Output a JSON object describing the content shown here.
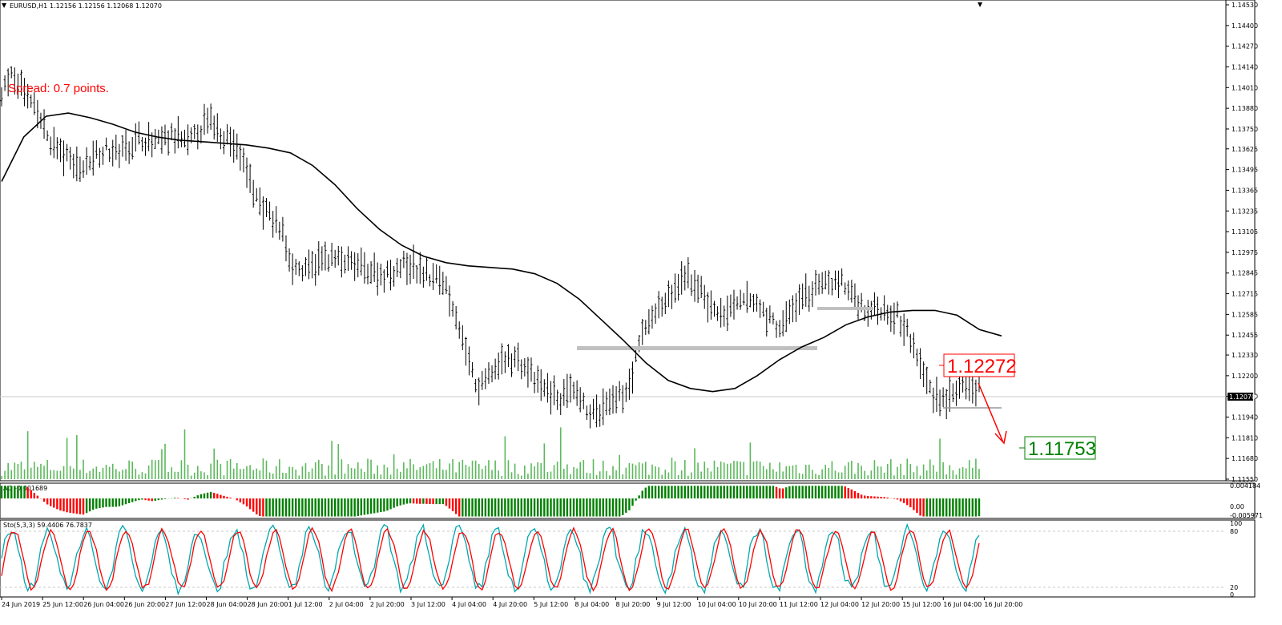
{
  "header": {
    "symbol_label": "EURUSD,H1",
    "ohlc_label": "1.12156 1.12156 1.12068 1.12070"
  },
  "spread_label": "Spread: 0.7 points.",
  "current_price_label": "1.12070",
  "annotations": {
    "resistance_label": "1.12272",
    "target_label": "1.11753"
  },
  "ao_panel": {
    "label": "AO -0.001689",
    "axis_labels": [
      "0.004184",
      "0.00",
      "-0.005971"
    ]
  },
  "sto_panel": {
    "label": "Sto(5,3,3) 59.4406 76.7837",
    "axis_labels": [
      "100",
      "80",
      "20",
      "0"
    ]
  },
  "colors": {
    "bars": "#000000",
    "ma": "#000000",
    "volume": "#5cb85c",
    "ao_up": "#008000",
    "ao_down": "#ff0000",
    "sto_main": "#00a8b0",
    "sto_signal": "#ff0000",
    "support_zone": "#c0c0c0",
    "arrow": "#ff0000"
  },
  "chart_data": {
    "type": "line",
    "title": "EURUSD,H1",
    "price_axis_ticks": [
      "1.14530",
      "1.14400",
      "1.14270",
      "1.14140",
      "1.14010",
      "1.13880",
      "1.13750",
      "1.13625",
      "1.13495",
      "1.13365",
      "1.13235",
      "1.13105",
      "1.12975",
      "1.12845",
      "1.12715",
      "1.12585",
      "1.12455",
      "1.12330",
      "1.12200",
      "1.12070",
      "1.11940",
      "1.11810",
      "1.11680",
      "1.11550"
    ],
    "time_axis_ticks": [
      "24 Jun 2019",
      "25 Jun 12:00",
      "26 Jun 04:00",
      "26 Jun 20:00",
      "27 Jun 12:00",
      "28 Jun 04:00",
      "28 Jun 20:00",
      "1 Jul 12:00",
      "2 Jul 04:00",
      "2 Jul 20:00",
      "3 Jul 12:00",
      "4 Jul 04:00",
      "4 Jul 20:00",
      "5 Jul 12:00",
      "8 Jul 04:00",
      "8 Jul 20:00",
      "9 Jul 12:00",
      "10 Jul 04:00",
      "10 Jul 20:00",
      "11 Jul 12:00",
      "12 Jul 04:00",
      "12 Jul 20:00",
      "15 Jul 12:00",
      "16 Jul 04:00",
      "16 Jul 20:00"
    ],
    "ylim": [
      1.1155,
      1.1453
    ],
    "price_path": [
      1.14,
      1.1408,
      1.1398,
      1.1385,
      1.137,
      1.136,
      1.1355,
      1.135,
      1.136,
      1.1362,
      1.136,
      1.1365,
      1.137,
      1.1365,
      1.1368,
      1.137,
      1.1365,
      1.1375,
      1.138,
      1.1372,
      1.1365,
      1.135,
      1.133,
      1.132,
      1.1312,
      1.129,
      1.1285,
      1.129,
      1.1295,
      1.1292,
      1.129,
      1.1288,
      1.1285,
      1.1283,
      1.1288,
      1.129,
      1.1285,
      1.1282,
      1.128,
      1.126,
      1.123,
      1.121,
      1.1222,
      1.1228,
      1.1232,
      1.1225,
      1.1215,
      1.121,
      1.1205,
      1.121,
      1.12,
      1.1195,
      1.12,
      1.1205,
      1.1215,
      1.1245,
      1.126,
      1.1265,
      1.1275,
      1.1282,
      1.1275,
      1.1262,
      1.1258,
      1.1262,
      1.1268,
      1.1265,
      1.1255,
      1.125,
      1.1262,
      1.127,
      1.1275,
      1.1278,
      1.128,
      1.1272,
      1.1262,
      1.1262,
      1.1262,
      1.1258,
      1.1245,
      1.1225,
      1.1208,
      1.1205,
      1.121,
      1.1212,
      1.1213
    ],
    "ma_path": [
      1.1342,
      1.137,
      1.1383,
      1.1385,
      1.1382,
      1.1378,
      1.1373,
      1.137,
      1.1368,
      1.1367,
      1.1366,
      1.1365,
      1.1363,
      1.136,
      1.1352,
      1.134,
      1.1325,
      1.1312,
      1.1302,
      1.1295,
      1.1291,
      1.1289,
      1.1288,
      1.1287,
      1.1284,
      1.1278,
      1.1268,
      1.1255,
      1.1242,
      1.1228,
      1.1217,
      1.1212,
      1.121,
      1.1212,
      1.122,
      1.123,
      1.1238,
      1.1244,
      1.1252,
      1.1257,
      1.126,
      1.1261,
      1.1261,
      1.1258,
      1.1249,
      1.1245
    ],
    "support_zone": {
      "from_label": "8 Jul 04:00",
      "to_label": "12 Jul 04:00",
      "price": 1.1238
    },
    "resistance_zone": {
      "price": 1.126
    },
    "low_line_price": 1.1203,
    "resistance_price": 1.12272,
    "target_price": 1.11753,
    "current_price": 1.1207,
    "ao_range": [
      -0.005971,
      0.004184
    ],
    "sto_range": [
      0,
      100
    ],
    "sto_levels": [
      20,
      80
    ]
  }
}
